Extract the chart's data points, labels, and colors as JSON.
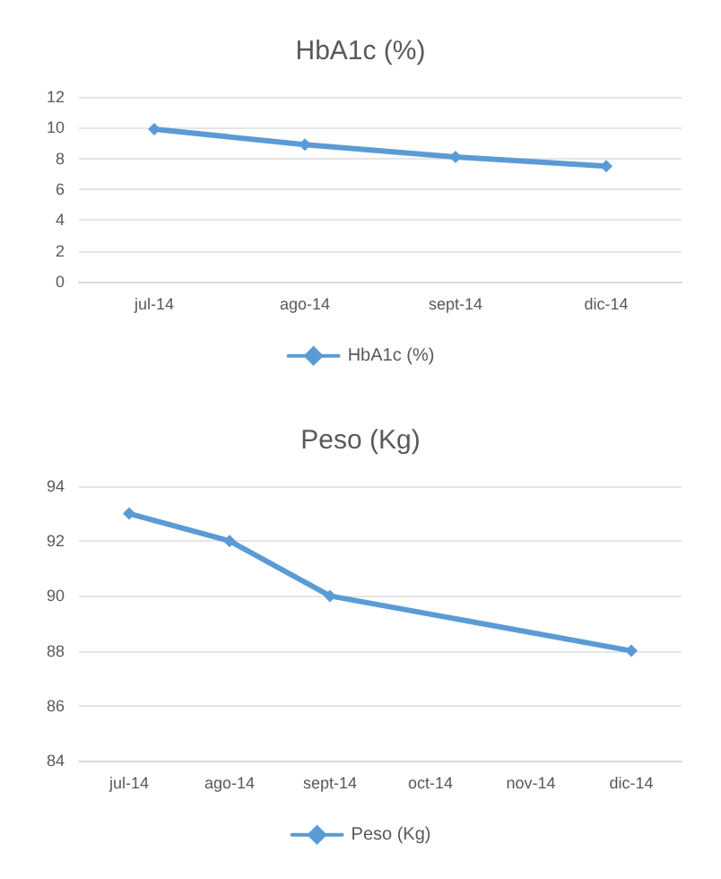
{
  "chart_data": [
    {
      "type": "line",
      "title": "HbA1c (%)",
      "categories": [
        "jul-14",
        "ago-14",
        "sept-14",
        "dic-14"
      ],
      "series": [
        {
          "name": "HbA1c (%)",
          "color": "#5b9bd5",
          "values": [
            9.9,
            8.9,
            8.1,
            7.5
          ]
        }
      ],
      "ylim": [
        0,
        12
      ],
      "yticks": [
        0,
        2,
        4,
        6,
        8,
        10,
        12
      ],
      "grid": "y",
      "legend": "bottom",
      "marker": "diamond",
      "line_style": "solid"
    },
    {
      "type": "line",
      "title": "Peso (Kg)",
      "categories": [
        "jul-14",
        "ago-14",
        "sept-14",
        "oct-14",
        "nov-14",
        "dic-14"
      ],
      "series": [
        {
          "name": "Peso (Kg)",
          "color": "#5b9bd5",
          "values": [
            93,
            92,
            90,
            null,
            null,
            88
          ]
        }
      ],
      "ylim": [
        84,
        94
      ],
      "yticks": [
        84,
        86,
        88,
        90,
        92,
        94
      ],
      "grid": "y",
      "legend": "bottom",
      "marker": "diamond",
      "line_style": "solid"
    }
  ]
}
